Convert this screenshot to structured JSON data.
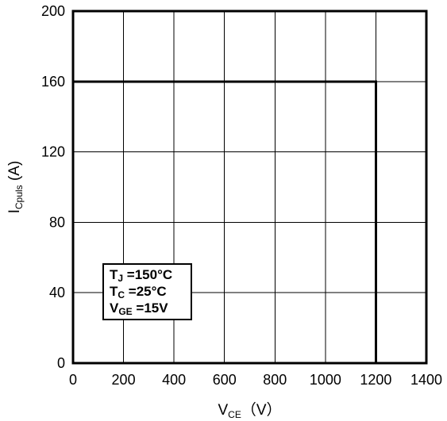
{
  "chart_data": {
    "type": "line",
    "xlabel": {
      "main": "V",
      "sub": "CE",
      "unit": "（V）"
    },
    "ylabel": {
      "main": "I",
      "sub": "Cpuls",
      "unit": " (A)"
    },
    "xlim": [
      0,
      1400
    ],
    "ylim": [
      0,
      200
    ],
    "x_ticks": [
      0,
      200,
      400,
      600,
      800,
      1000,
      1200,
      1400
    ],
    "y_ticks": [
      0,
      40,
      80,
      120,
      160,
      200
    ],
    "grid": true,
    "series": [
      {
        "x": [
          0,
          1200,
          1200
        ],
        "y": [
          160,
          160,
          0
        ]
      }
    ],
    "legend_placement": "lower-left",
    "annotation": [
      {
        "main": "T",
        "sub": "J",
        "rest": " =150°C"
      },
      {
        "main": "T",
        "sub": "C",
        "rest": " =25°C"
      },
      {
        "main": "V",
        "sub": "GE",
        "rest": " =15V"
      }
    ]
  }
}
